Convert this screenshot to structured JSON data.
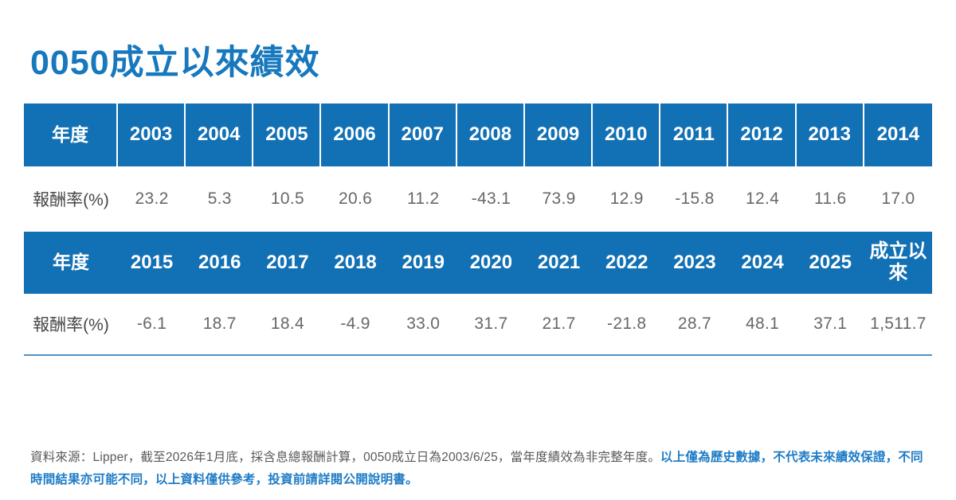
{
  "title": "0050成立以來績效",
  "colors": {
    "accent_blue": "#1270B4",
    "title_blue": "#1778BE",
    "footnote_blue": "#1E7CC6",
    "text_gray": "#58595B",
    "value_gray": "#67686B",
    "underline_blue": "#4F94C9"
  },
  "table1": {
    "header_label": "年度",
    "years": [
      "2003",
      "2004",
      "2005",
      "2006",
      "2007",
      "2008",
      "2009",
      "2010",
      "2011",
      "2012",
      "2013",
      "2014"
    ],
    "row_label": "報酬率(%)",
    "values": [
      "23.2",
      "5.3",
      "10.5",
      "20.6",
      "11.2",
      "-43.1",
      "73.9",
      "12.9",
      "-15.8",
      "12.4",
      "11.6",
      "17.0"
    ]
  },
  "table2": {
    "header_label": "年度",
    "years": [
      "2015",
      "2016",
      "2017",
      "2018",
      "2019",
      "2020",
      "2021",
      "2022",
      "2023",
      "2024",
      "2025",
      "成立以來"
    ],
    "row_label": "報酬率(%)",
    "values": [
      "-6.1",
      "18.7",
      "18.4",
      "-4.9",
      "33.0",
      "31.7",
      "21.7",
      "-21.8",
      "28.7",
      "48.1",
      "37.1",
      "1,511.7"
    ]
  },
  "footnote": {
    "source_text": "資料來源：Lipper，截至2026年1月底，採含息總報酬計算，0050成立日為2003/6/25，當年度績效為非完整年度。",
    "disclaimer_text": "以上僅為歷史數據，不代表未來績效保證，不同時間結果亦可能不同，以上資料僅供參考，投資前請詳閱公開說明書。"
  },
  "chart_data": {
    "type": "table",
    "title": "0050成立以來績效",
    "row_label": "報酬率(%)",
    "columns": [
      "2003",
      "2004",
      "2005",
      "2006",
      "2007",
      "2008",
      "2009",
      "2010",
      "2011",
      "2012",
      "2013",
      "2014",
      "2015",
      "2016",
      "2017",
      "2018",
      "2019",
      "2020",
      "2021",
      "2022",
      "2023",
      "2024",
      "2025",
      "成立以來"
    ],
    "values": [
      23.2,
      5.3,
      10.5,
      20.6,
      11.2,
      -43.1,
      73.9,
      12.9,
      -15.8,
      12.4,
      11.6,
      17.0,
      -6.1,
      18.7,
      18.4,
      -4.9,
      33.0,
      31.7,
      21.7,
      -21.8,
      28.7,
      48.1,
      37.1,
      1511.7
    ]
  }
}
